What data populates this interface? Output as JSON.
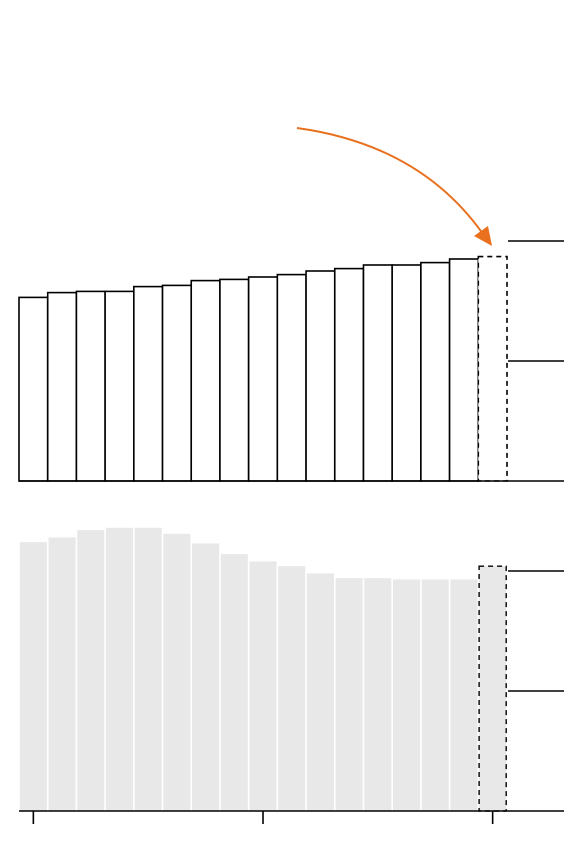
{
  "chart_data": [
    {
      "type": "bar",
      "style": "outline",
      "color": "#000000",
      "fill": "#ffffff",
      "categories": [
        null,
        null,
        null,
        null,
        null,
        null,
        null,
        null,
        null,
        null,
        null,
        null,
        null,
        null,
        null,
        null,
        null
      ],
      "values": [
        1.53,
        1.57,
        1.58,
        1.58,
        1.62,
        1.63,
        1.67,
        1.68,
        1.7,
        1.72,
        1.75,
        1.77,
        1.8,
        1.8,
        1.82,
        1.85,
        1.87
      ],
      "dashed": [
        16
      ],
      "ylim": [
        0,
        2.4
      ],
      "yticks": [
        0,
        1,
        2
      ]
    },
    {
      "type": "bar",
      "style": "filled",
      "color": "#000000",
      "fill": "#e8e8e8",
      "categories": [
        null,
        null,
        null,
        null,
        null,
        null,
        null,
        null,
        null,
        null,
        null,
        null,
        null,
        null,
        null,
        null,
        null
      ],
      "values": [
        2.24,
        2.28,
        2.34,
        2.36,
        2.36,
        2.31,
        2.23,
        2.14,
        2.08,
        2.04,
        1.98,
        1.94,
        1.94,
        1.93,
        1.93,
        1.93,
        2.04
      ],
      "dashed": [
        16
      ],
      "ylim": [
        0,
        2.4
      ],
      "yticks": [
        0,
        1,
        2
      ],
      "xticks": [
        0,
        8,
        16
      ]
    }
  ]
}
